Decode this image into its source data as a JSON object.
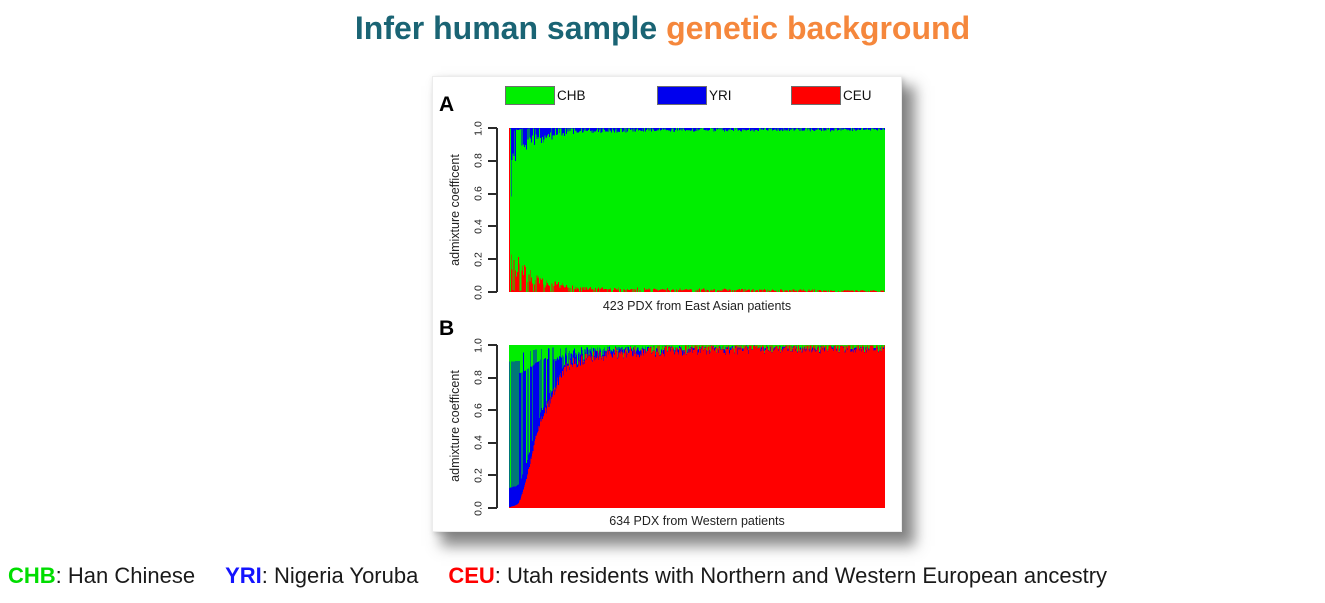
{
  "title": {
    "part1": "Infer human sample ",
    "part2": "genetic background",
    "part1_color": "#1A6474",
    "part2_color": "#F5873C"
  },
  "legend": {
    "items": [
      {
        "label": "CHB",
        "color": "#00EE00"
      },
      {
        "label": "YRI",
        "color": "#0000EE"
      },
      {
        "label": "CEU",
        "color": "#FF0000"
      }
    ]
  },
  "caption": {
    "terms": [
      {
        "abbr": "CHB",
        "color": "#00DD00",
        "definition": ": Han Chinese"
      },
      {
        "abbr": "YRI",
        "color": "#1414FF",
        "definition": ": Nigeria Yoruba"
      },
      {
        "abbr": "CEU",
        "color": "#FF0000",
        "definition": ": Utah residents with Northern and Western European ancestry"
      }
    ]
  },
  "chart_data": [
    {
      "type": "bar",
      "subtype": "stacked_admixture_sorted_per_sample",
      "panel_label": "A",
      "n_samples": 423,
      "xlabel": "423 PDX from East Asian patients",
      "ylabel": "admixture coefficent",
      "ylim": [
        0.0,
        1.0
      ],
      "ytick_labels": [
        "0.0",
        "0.2",
        "0.4",
        "0.6",
        "0.8",
        "1.0"
      ],
      "grid": false,
      "legend_position": "top",
      "series": [
        {
          "name": "CHB",
          "color": "#00EE00",
          "role": "dominant-middle"
        },
        {
          "name": "YRI",
          "color": "#0000EE",
          "role": "top-fringe"
        },
        {
          "name": "CEU",
          "color": "#FF0000",
          "role": "bottom-fringe"
        }
      ],
      "stack_order_bottom_to_top": [
        "CEU",
        "CHB",
        "YRI"
      ],
      "summary": "Samples sorted by decreasing non-CHB ancestry; first bar is fully CEU, remaining bars are predominantly CHB with decaying YRI top fringe and CEU bottom fringe",
      "profile": {
        "first_bar": {
          "CHB": 0.0,
          "YRI": 0.0,
          "CEU": 1.0
        },
        "yri_top_keypoints": [
          [
            1,
            0.32
          ],
          [
            4,
            0.22
          ],
          [
            12,
            0.14
          ],
          [
            30,
            0.07
          ],
          [
            70,
            0.025
          ],
          [
            150,
            0.015
          ],
          [
            422,
            0.012
          ]
        ],
        "ceu_bottom_keypoints": [
          [
            1,
            0.25
          ],
          [
            4,
            0.2
          ],
          [
            12,
            0.13
          ],
          [
            40,
            0.05
          ],
          [
            90,
            0.02
          ],
          [
            422,
            0.007
          ]
        ],
        "fringe_dash_probability": 0.3
      },
      "seed": 7
    },
    {
      "type": "bar",
      "subtype": "stacked_admixture_sorted_per_sample",
      "panel_label": "B",
      "n_samples": 634,
      "xlabel": "634 PDX from Western patients",
      "ylabel": "admixture coefficent",
      "ylim": [
        0.0,
        1.0
      ],
      "ytick_labels": [
        "0.0",
        "0.2",
        "0.4",
        "0.6",
        "0.8",
        "1.0"
      ],
      "grid": false,
      "legend_position": "top",
      "series": [
        {
          "name": "CEU",
          "color": "#FF0000",
          "role": "dominant-bottom"
        },
        {
          "name": "YRI",
          "color": "#0000EE",
          "role": "middle"
        },
        {
          "name": "CHB",
          "color": "#00EE00",
          "role": "top"
        }
      ],
      "stack_order_bottom_to_top": [
        "CEU",
        "YRI",
        "CHB"
      ],
      "summary": "Samples sorted by increasing CEU ancestry; leftmost bars are alternating CHB/YRI stripes, CEU rises in an S-curve to ~1.0 with thin CHB/YRI fringe on top",
      "profile": {
        "ceu_keypoints": [
          [
            0,
            0.006
          ],
          [
            10,
            0.015
          ],
          [
            16,
            0.03
          ],
          [
            22,
            0.09
          ],
          [
            28,
            0.17
          ],
          [
            34,
            0.26
          ],
          [
            40,
            0.36
          ],
          [
            46,
            0.45
          ],
          [
            52,
            0.52
          ],
          [
            58,
            0.57
          ],
          [
            64,
            0.62
          ],
          [
            70,
            0.67
          ],
          [
            76,
            0.72
          ],
          [
            82,
            0.77
          ],
          [
            88,
            0.82
          ],
          [
            95,
            0.86
          ],
          [
            105,
            0.885
          ],
          [
            120,
            0.905
          ],
          [
            145,
            0.93
          ],
          [
            180,
            0.95
          ],
          [
            240,
            0.963
          ],
          [
            330,
            0.975
          ],
          [
            450,
            0.985
          ],
          [
            633,
            0.993
          ]
        ],
        "yri_share_keypoints": [
          [
            18,
            0.82
          ],
          [
            60,
            0.8
          ],
          [
            80,
            0.65
          ],
          [
            120,
            0.55
          ],
          [
            200,
            0.5
          ],
          [
            633,
            0.45
          ]
        ],
        "stripe_end_index": 18,
        "stripe_yri_share_high": 0.9,
        "stripe_yri_share_low": 0.12,
        "green_bar_probability": 0.25
      },
      "seed": 13
    }
  ]
}
